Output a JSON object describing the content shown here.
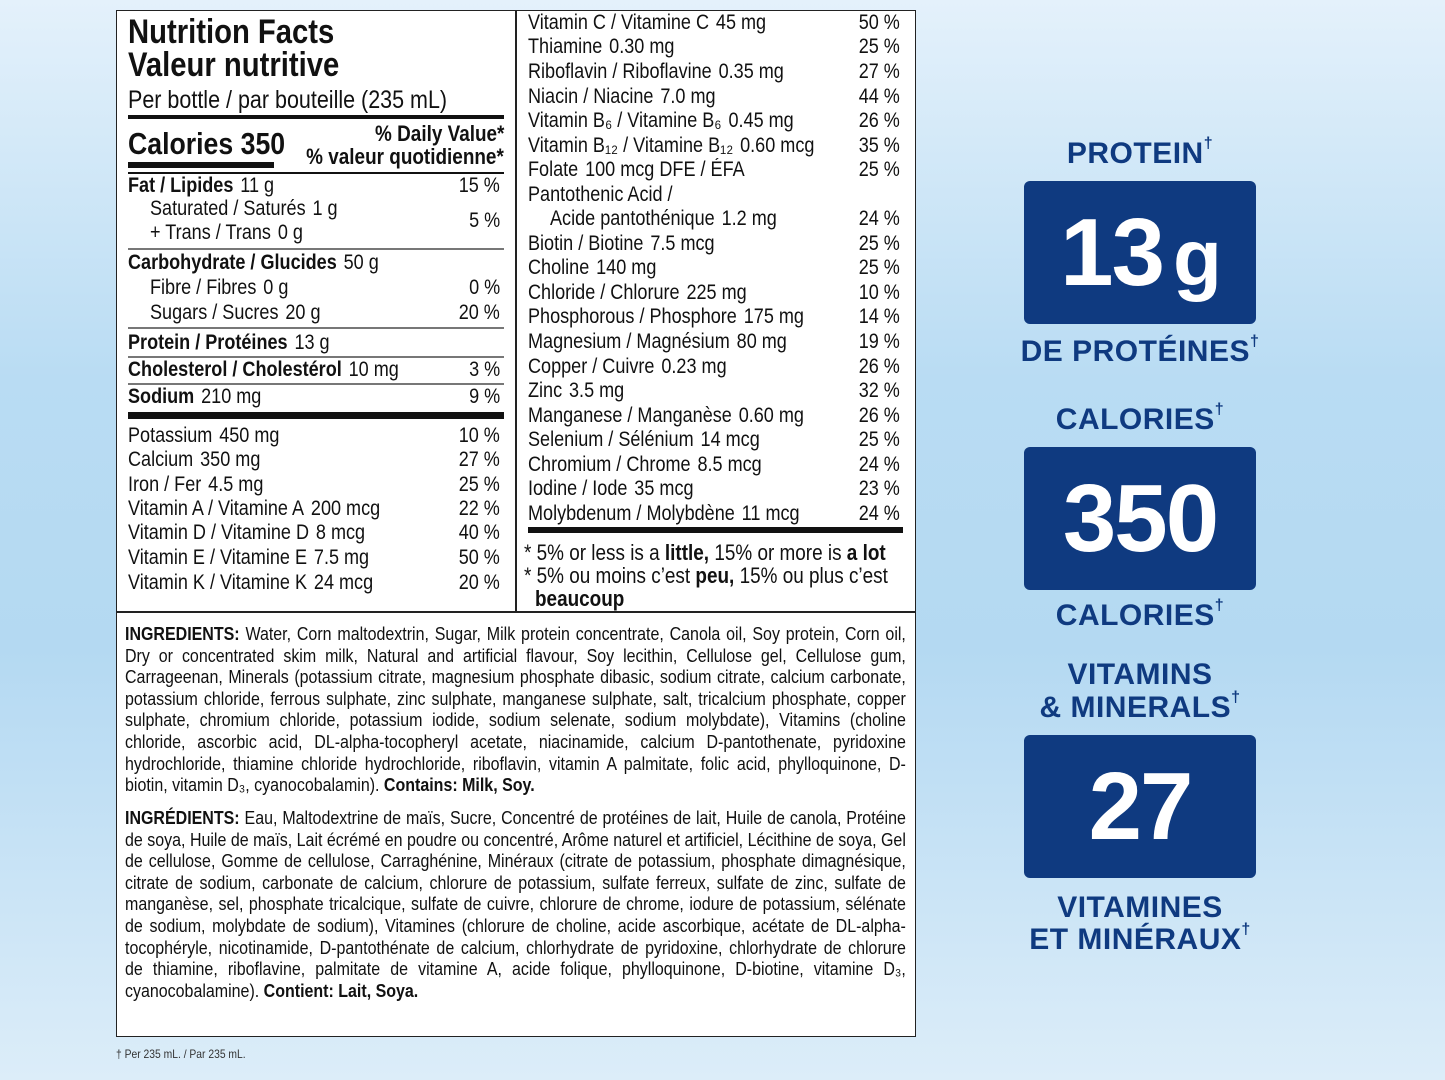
{
  "label": {
    "title_en": "Nutrition Facts",
    "title_fr": "Valeur nutritive",
    "serving": "Per bottle / par bouteille (235 mL)",
    "calories_label": "Calories 350",
    "dv_header_en": "% Daily Value*",
    "dv_header_fr": "% valeur quotidienne*",
    "left_rows": [
      {
        "name": "Fat / Lipides",
        "amount": "11 g",
        "dv": "15 %",
        "bold": true
      },
      {
        "name": "Saturated / Saturés",
        "amount": "1 g",
        "dv": "",
        "indent": true
      },
      {
        "name": "+ Trans / Trans",
        "amount": "0 g",
        "dv": "5 %",
        "indent": true
      },
      {
        "name": "Carbohydrate / Glucides",
        "amount": "50 g",
        "dv": "",
        "bold": true
      },
      {
        "name": "Fibre / Fibres",
        "amount": "0 g",
        "dv": "0 %",
        "indent": true
      },
      {
        "name": "Sugars / Sucres",
        "amount": "20 g",
        "dv": "20 %",
        "indent": true
      },
      {
        "name": "Protein / Protéines",
        "amount": "13 g",
        "dv": "",
        "bold": true
      },
      {
        "name": "Cholesterol / Cholestérol",
        "amount": "10 mg",
        "dv": "3 %",
        "bold": true
      },
      {
        "name": "Sodium",
        "amount": "210 mg",
        "dv": "9 %",
        "bold": true
      },
      {
        "name": "Potassium",
        "amount": "450 mg",
        "dv": "10 %"
      },
      {
        "name": "Calcium",
        "amount": "350 mg",
        "dv": "27 %"
      },
      {
        "name": "Iron / Fer",
        "amount": "4.5 mg",
        "dv": "25 %"
      },
      {
        "name": "Vitamin A / Vitamine A",
        "amount": "200 mcg",
        "dv": "22 %"
      },
      {
        "name": "Vitamin D / Vitamine D",
        "amount": "8 mcg",
        "dv": "40 %"
      },
      {
        "name": "Vitamin E / Vitamine E",
        "amount": "7.5 mg",
        "dv": "50 %"
      },
      {
        "name": "Vitamin K / Vitamine K",
        "amount": "24 mcg",
        "dv": "20 %"
      }
    ],
    "right_rows": [
      {
        "name": "Vitamin C / Vitamine C",
        "amount": "45 mg",
        "dv": "50 %"
      },
      {
        "name": "Thiamine",
        "amount": "0.30 mg",
        "dv": "25 %"
      },
      {
        "name": "Riboflavin / Riboflavine",
        "amount": "0.35 mg",
        "dv": "27 %"
      },
      {
        "name": "Niacin / Niacine",
        "amount": "7.0 mg",
        "dv": "44 %"
      },
      {
        "name": "Vitamin B₆ / Vitamine B₆",
        "amount": "0.45 mg",
        "dv": "26 %"
      },
      {
        "name": "Vitamin B₁₂ / Vitamine B₁₂",
        "amount": "0.60 mcg",
        "dv": "35 %"
      },
      {
        "name": "Folate",
        "amount": "100 mcg DFE / ÉFA",
        "dv": "25 %"
      },
      {
        "name": "Pantothenic Acid /",
        "amount": "",
        "dv": ""
      },
      {
        "name": "Acide pantothénique",
        "amount": "1.2 mg",
        "dv": "24 %",
        "indent": true
      },
      {
        "name": "Biotin / Biotine",
        "amount": "7.5 mcg",
        "dv": "25 %"
      },
      {
        "name": "Choline",
        "amount": "140 mg",
        "dv": "25 %"
      },
      {
        "name": "Chloride / Chlorure",
        "amount": "225 mg",
        "dv": "10 %"
      },
      {
        "name": "Phosphorous / Phosphore",
        "amount": "175 mg",
        "dv": "14 %"
      },
      {
        "name": "Magnesium / Magnésium",
        "amount": "80 mg",
        "dv": "19 %"
      },
      {
        "name": "Copper / Cuivre",
        "amount": "0.23 mg",
        "dv": "26 %"
      },
      {
        "name": "Zinc",
        "amount": "3.5 mg",
        "dv": "32 %"
      },
      {
        "name": "Manganese / Manganèse",
        "amount": "0.60 mg",
        "dv": "26 %"
      },
      {
        "name": "Selenium / Sélénium",
        "amount": "14 mcg",
        "dv": "25 %"
      },
      {
        "name": "Chromium / Chrome",
        "amount": "8.5 mcg",
        "dv": "24 %"
      },
      {
        "name": "Iodine / Iode",
        "amount": "35 mcg",
        "dv": "23 %"
      },
      {
        "name": "Molybdenum / Molybdène",
        "amount": "11 mcg",
        "dv": "24 %"
      }
    ],
    "footnote_en": {
      "a": "* 5% or less is a ",
      "b": "little,",
      "c": " 15% or more is ",
      "d": "a lot"
    },
    "footnote_fr": {
      "a": "* 5% ou moins c’est ",
      "b": "peu,",
      "c": " 15% ou plus c’est",
      "d": "beaucoup"
    },
    "ingredients_en": {
      "head": "INGREDIENTS:",
      "body": " Water, Corn maltodextrin, Sugar, Milk protein concentrate, Canola oil, Soy protein, Corn oil, Dry or concentrated skim milk, Natural and artificial flavour, Soy lecithin, Cellulose gel, Cellulose gum, Carrageenan, Minerals (potassium citrate, magnesium phosphate dibasic, sodium citrate, calcium carbonate, potassium chloride, ferrous sulphate, zinc sulphate, manganese sulphate, salt, tricalcium phosphate, copper sulphate, chromium chloride, potassium iodide, sodium selenate, sodium molybdate), Vitamins (choline chloride, ascorbic acid, DL-alpha-tocopheryl acetate, niacinamide, calcium D-pantothenate, pyridoxine hydrochloride, thiamine chloride hydrochloride, riboflavin, vitamin A palmitate, folic acid, phylloquinone, D-biotin, vitamin D₃, cyanocobalamin). ",
      "contains": "Contains: Milk, Soy."
    },
    "ingredients_fr": {
      "head": "INGRÉDIENTS:",
      "body": " Eau, Maltodextrine de maïs, Sucre, Concentré de protéines de lait, Huile de canola, Protéine de soya, Huile de maïs, Lait écrémé en poudre ou concentré, Arôme naturel et artificiel, Lécithine de soya, Gel de cellulose, Gomme de cellulose, Carraghénine, Minéraux (citrate de potassium, phosphate dimagnésique, citrate de sodium, carbonate de calcium, chlorure de potassium, sulfate ferreux, sulfate de zinc, sulfate de manganèse, sel, phosphate tricalcique, sulfate de cuivre, chlorure de chrome, iodure de potassium, sélénate de sodium, molybdate de sodium), Vitamines (chlorure de choline, acide ascorbique, acétate de DL-alpha-tocophéryle, nicotinamide, D-pantothénate de calcium, chlorhydrate de pyridoxine, chlorhydrate de chlorure de thiamine, riboflavine, palmitate de vitamine A, acide folique, phylloquinone, D-biotine, vitamine D₃, cyanocobalamine). ",
      "contains": "Contient: Lait, Soya."
    }
  },
  "panel": {
    "brand_color": "#0f3a80",
    "protein_top": "PROTEIN",
    "protein_value": "13",
    "protein_unit": "g",
    "protein_bottom": "DE PROTÉINES",
    "calories_top": "CALORIES",
    "calories_value": "350",
    "calories_bottom": "CALORIES",
    "vitamins_top1": "VITAMINS",
    "vitamins_top2": "& MINERALS",
    "vitamins_value": "27",
    "vitamins_bottom1": "VITAMINES",
    "vitamins_bottom2": "ET MINÉRAUX",
    "dagger": "†"
  },
  "footer": "† Per 235 mL. / Par 235 mL."
}
